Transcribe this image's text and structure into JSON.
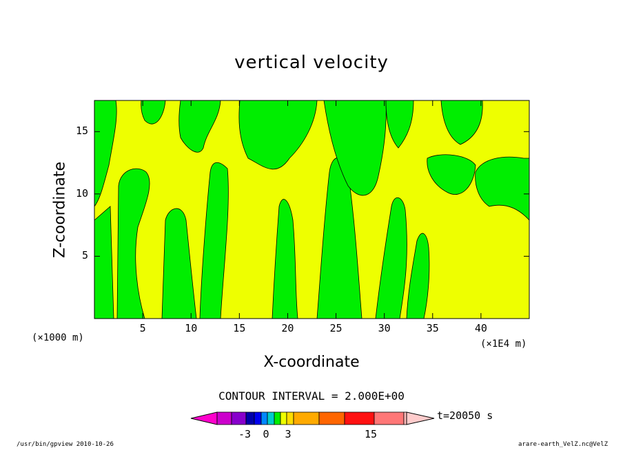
{
  "title": "vertical velocity",
  "chart_data": {
    "type": "heatmap",
    "title": "vertical velocity",
    "xlabel": "X-coordinate",
    "ylabel": "Z-coordinate",
    "x_unit_left": "(×1000 m)",
    "x_unit_right": "(×1E4 m)",
    "x_ticks": [
      "5",
      "10",
      "15",
      "20",
      "25",
      "30",
      "35",
      "40"
    ],
    "y_ticks": [
      "5",
      "10",
      "15"
    ],
    "xlim": [
      0,
      45
    ],
    "ylim": [
      0,
      17.5
    ],
    "grid": false,
    "legend": "bottom colorbar",
    "contour_interval_text": "CONTOUR INTERVAL = 2.000E+00",
    "time_text": "t=20050 s",
    "colorbar_labels": [
      "-3",
      "0",
      "3",
      "15"
    ],
    "colors": {
      "positive": "#eeff00",
      "negative": "#00ee00",
      "colorbar": [
        "#ff00cc",
        "#cc00cc",
        "#8800cc",
        "#0000aa",
        "#0000ee",
        "#0088ff",
        "#00cccc",
        "#00ee00",
        "#eeff00",
        "#ffdd00",
        "#ffaa00",
        "#ff6600",
        "#ff1111",
        "#ff7777",
        "#ffbbbb",
        "#ffcccc"
      ]
    },
    "regions_description": "alternating updraft (yellow) and downdraft (green) columns"
  },
  "footer": {
    "left": "/usr/bin/gpview   2010-10-26",
    "right": "arare-earth_VelZ.nc@VelZ"
  }
}
